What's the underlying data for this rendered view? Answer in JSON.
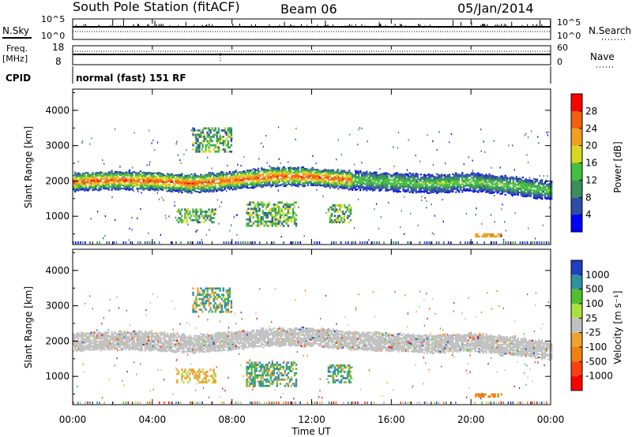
{
  "header": {
    "title": "South Pole Station (fitACF)",
    "beam": "Beam 06",
    "date": "05/Jan/2014"
  },
  "noise_panel": {
    "left_label": "N.Sky",
    "left_ticks": [
      "10^5",
      "10^0"
    ],
    "right_label": "N.Search",
    "right_ticks": [
      "10^5",
      "10^0"
    ]
  },
  "freq_panel": {
    "left_label_1": "Freq.",
    "left_label_2": "[MHz]",
    "left_ticks": [
      "18",
      "8"
    ],
    "right_label": "Nave",
    "right_ticks": [
      "60",
      "0"
    ]
  },
  "cpid": {
    "label": "CPID",
    "value": "normal (fast) 151 RF"
  },
  "x_axis": {
    "title": "Time UT",
    "ticks": [
      "00:00",
      "04:00",
      "08:00",
      "12:00",
      "16:00",
      "20:00",
      "00:00"
    ]
  },
  "colors": {
    "power": [
      "#0000ff",
      "#2d4ea6",
      "#3a8f5a",
      "#44c040",
      "#d8d820",
      "#f0a020",
      "#f06010",
      "#ff0000"
    ],
    "velocity": [
      "#2040c0",
      "#3090a0",
      "#50c030",
      "#a8e040",
      "#c0c0c0",
      "#f0a030",
      "#f08010",
      "#ff4010",
      "#ff0000"
    ]
  },
  "chart_data": [
    {
      "type": "heatmap",
      "title": "Power",
      "ylabel": "Slant Range [km]",
      "yticks": [
        "1000",
        "2000",
        "3000",
        "4000"
      ],
      "ylim": [
        200,
        4600
      ],
      "xlim_hours": [
        0,
        24
      ],
      "colorbar_label": "Power [dB]",
      "colorbar_ticks": [
        "4",
        "8",
        "12",
        "16",
        "20",
        "24",
        "28"
      ],
      "main_band_km": [
        [
          0,
          1950
        ],
        [
          2,
          2000
        ],
        [
          4,
          1980
        ],
        [
          6,
          1900
        ],
        [
          8,
          2000
        ],
        [
          10,
          2100
        ],
        [
          12,
          2100
        ],
        [
          14,
          2000
        ],
        [
          16,
          1950
        ],
        [
          18,
          1900
        ],
        [
          20,
          1950
        ],
        [
          22,
          1850
        ],
        [
          24,
          1700
        ]
      ],
      "features": [
        {
          "name": "cusp-echo-left",
          "hours": [
            5.2,
            7.2
          ],
          "km": [
            800,
            1200
          ]
        },
        {
          "name": "cusp-echo-mid",
          "hours": [
            8.7,
            11.2
          ],
          "km": [
            700,
            1400
          ]
        },
        {
          "name": "echo-13h",
          "hours": [
            12.8,
            14.0
          ],
          "km": [
            800,
            1300
          ]
        },
        {
          "name": "high-range-07h",
          "hours": [
            6.0,
            8.0
          ],
          "km": [
            2800,
            3500
          ]
        },
        {
          "name": "ground-scatter-20h",
          "hours": [
            20.2,
            21.5
          ],
          "km": [
            400,
            480
          ]
        }
      ]
    },
    {
      "type": "heatmap",
      "title": "Velocity",
      "ylabel": "Slant Range [km]",
      "yticks": [
        "1000",
        "2000",
        "3000",
        "4000"
      ],
      "ylim": [
        200,
        4600
      ],
      "xlim_hours": [
        0,
        24
      ],
      "colorbar_label": "Velocity [m s⁻¹]",
      "colorbar_ticks": [
        "1000",
        "500",
        "100",
        "25",
        "-25",
        "-100",
        "-500",
        "-1000"
      ],
      "main_band_km": [
        [
          0,
          1950
        ],
        [
          2,
          2000
        ],
        [
          4,
          1980
        ],
        [
          6,
          1900
        ],
        [
          8,
          2000
        ],
        [
          10,
          2100
        ],
        [
          12,
          2100
        ],
        [
          14,
          2000
        ],
        [
          16,
          1950
        ],
        [
          18,
          1900
        ],
        [
          20,
          1950
        ],
        [
          22,
          1850
        ],
        [
          24,
          1700
        ]
      ]
    }
  ]
}
